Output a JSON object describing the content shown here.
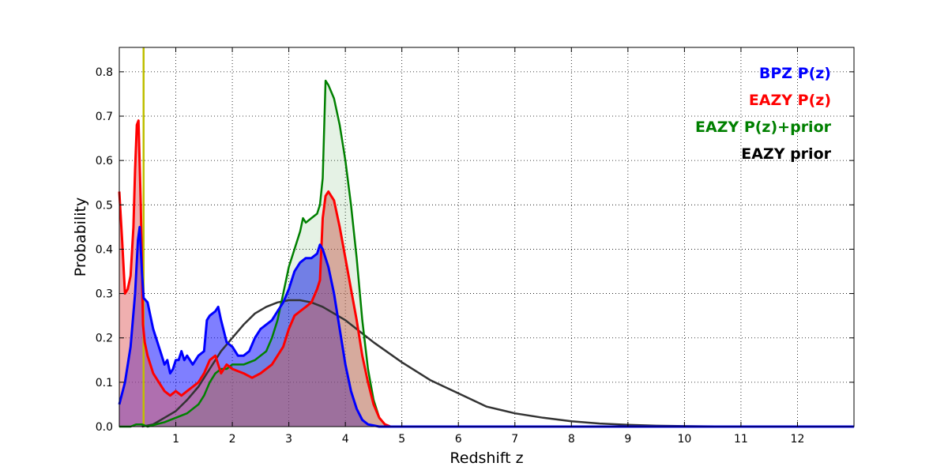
{
  "chart_data": {
    "type": "line",
    "title": "",
    "xlabel": "Redshift z",
    "ylabel": "Probability",
    "xlim": [
      0,
      13
    ],
    "ylim": [
      0,
      0.855
    ],
    "x_ticks": [
      1,
      2,
      3,
      4,
      5,
      6,
      7,
      8,
      9,
      10,
      11,
      12
    ],
    "y_ticks": [
      0.0,
      0.1,
      0.2,
      0.3,
      0.4,
      0.5,
      0.6,
      0.7,
      0.8
    ],
    "grid": true,
    "legend_position": "top-right",
    "vertical_line": {
      "x": 0.43,
      "color": "#bfbf00"
    },
    "series": [
      {
        "name": "BPZ P(z)",
        "color": "#0000ff",
        "fill": "#0000ff",
        "fill_opacity": 0.5,
        "points": [
          [
            0,
            0.05
          ],
          [
            0.1,
            0.1
          ],
          [
            0.2,
            0.18
          ],
          [
            0.28,
            0.3
          ],
          [
            0.33,
            0.42
          ],
          [
            0.36,
            0.45
          ],
          [
            0.4,
            0.35
          ],
          [
            0.43,
            0.29
          ],
          [
            0.5,
            0.28
          ],
          [
            0.6,
            0.22
          ],
          [
            0.7,
            0.18
          ],
          [
            0.75,
            0.16
          ],
          [
            0.8,
            0.14
          ],
          [
            0.85,
            0.15
          ],
          [
            0.9,
            0.12
          ],
          [
            0.95,
            0.13
          ],
          [
            1.0,
            0.15
          ],
          [
            1.05,
            0.15
          ],
          [
            1.1,
            0.17
          ],
          [
            1.15,
            0.15
          ],
          [
            1.2,
            0.16
          ],
          [
            1.3,
            0.14
          ],
          [
            1.4,
            0.16
          ],
          [
            1.5,
            0.17
          ],
          [
            1.55,
            0.24
          ],
          [
            1.6,
            0.25
          ],
          [
            1.7,
            0.26
          ],
          [
            1.75,
            0.27
          ],
          [
            1.8,
            0.24
          ],
          [
            1.9,
            0.19
          ],
          [
            2.0,
            0.18
          ],
          [
            2.1,
            0.16
          ],
          [
            2.2,
            0.16
          ],
          [
            2.3,
            0.17
          ],
          [
            2.4,
            0.2
          ],
          [
            2.5,
            0.22
          ],
          [
            2.6,
            0.23
          ],
          [
            2.7,
            0.24
          ],
          [
            2.8,
            0.26
          ],
          [
            2.9,
            0.28
          ],
          [
            3.0,
            0.31
          ],
          [
            3.1,
            0.35
          ],
          [
            3.2,
            0.37
          ],
          [
            3.3,
            0.38
          ],
          [
            3.4,
            0.38
          ],
          [
            3.5,
            0.39
          ],
          [
            3.55,
            0.41
          ],
          [
            3.6,
            0.4
          ],
          [
            3.7,
            0.36
          ],
          [
            3.8,
            0.3
          ],
          [
            3.9,
            0.22
          ],
          [
            4.0,
            0.14
          ],
          [
            4.1,
            0.08
          ],
          [
            4.2,
            0.04
          ],
          [
            4.3,
            0.015
          ],
          [
            4.4,
            0.005
          ],
          [
            4.6,
            0.0
          ],
          [
            13,
            0.0
          ]
        ]
      },
      {
        "name": "EAZY P(z)",
        "color": "#ff0000",
        "fill": "#e06060",
        "fill_opacity": 0.5,
        "points": [
          [
            0,
            0.53
          ],
          [
            0.05,
            0.42
          ],
          [
            0.1,
            0.3
          ],
          [
            0.15,
            0.31
          ],
          [
            0.2,
            0.34
          ],
          [
            0.25,
            0.45
          ],
          [
            0.28,
            0.58
          ],
          [
            0.31,
            0.68
          ],
          [
            0.34,
            0.69
          ],
          [
            0.38,
            0.5
          ],
          [
            0.42,
            0.23
          ],
          [
            0.45,
            0.19
          ],
          [
            0.5,
            0.16
          ],
          [
            0.6,
            0.12
          ],
          [
            0.7,
            0.1
          ],
          [
            0.8,
            0.08
          ],
          [
            0.9,
            0.07
          ],
          [
            1.0,
            0.08
          ],
          [
            1.1,
            0.07
          ],
          [
            1.2,
            0.08
          ],
          [
            1.3,
            0.09
          ],
          [
            1.4,
            0.1
          ],
          [
            1.5,
            0.12
          ],
          [
            1.6,
            0.15
          ],
          [
            1.7,
            0.16
          ],
          [
            1.8,
            0.12
          ],
          [
            1.9,
            0.14
          ],
          [
            2.0,
            0.13
          ],
          [
            2.2,
            0.12
          ],
          [
            2.35,
            0.11
          ],
          [
            2.5,
            0.12
          ],
          [
            2.7,
            0.14
          ],
          [
            2.9,
            0.18
          ],
          [
            3.0,
            0.22
          ],
          [
            3.1,
            0.25
          ],
          [
            3.2,
            0.26
          ],
          [
            3.3,
            0.27
          ],
          [
            3.4,
            0.28
          ],
          [
            3.5,
            0.31
          ],
          [
            3.55,
            0.33
          ],
          [
            3.6,
            0.47
          ],
          [
            3.65,
            0.52
          ],
          [
            3.7,
            0.53
          ],
          [
            3.8,
            0.51
          ],
          [
            3.9,
            0.45
          ],
          [
            4.0,
            0.38
          ],
          [
            4.1,
            0.31
          ],
          [
            4.2,
            0.24
          ],
          [
            4.3,
            0.16
          ],
          [
            4.4,
            0.1
          ],
          [
            4.5,
            0.05
          ],
          [
            4.6,
            0.02
          ],
          [
            4.7,
            0.005
          ],
          [
            4.8,
            0.0
          ],
          [
            13,
            0.0
          ]
        ]
      },
      {
        "name": "EAZY P(z)+prior",
        "color": "#008000",
        "fill": "#008000",
        "fill_opacity": 0.1,
        "points": [
          [
            0,
            0.0
          ],
          [
            0.2,
            0.0
          ],
          [
            0.3,
            0.005
          ],
          [
            0.4,
            0.005
          ],
          [
            0.5,
            0.0
          ],
          [
            0.8,
            0.01
          ],
          [
            1.0,
            0.02
          ],
          [
            1.2,
            0.03
          ],
          [
            1.4,
            0.05
          ],
          [
            1.5,
            0.07
          ],
          [
            1.6,
            0.1
          ],
          [
            1.7,
            0.12
          ],
          [
            1.8,
            0.13
          ],
          [
            1.9,
            0.13
          ],
          [
            2.0,
            0.14
          ],
          [
            2.2,
            0.14
          ],
          [
            2.4,
            0.15
          ],
          [
            2.6,
            0.17
          ],
          [
            2.7,
            0.2
          ],
          [
            2.8,
            0.24
          ],
          [
            2.9,
            0.3
          ],
          [
            3.0,
            0.36
          ],
          [
            3.1,
            0.4
          ],
          [
            3.2,
            0.44
          ],
          [
            3.25,
            0.47
          ],
          [
            3.3,
            0.46
          ],
          [
            3.4,
            0.47
          ],
          [
            3.5,
            0.48
          ],
          [
            3.55,
            0.5
          ],
          [
            3.6,
            0.56
          ],
          [
            3.65,
            0.78
          ],
          [
            3.7,
            0.77
          ],
          [
            3.8,
            0.74
          ],
          [
            3.9,
            0.68
          ],
          [
            4.0,
            0.6
          ],
          [
            4.1,
            0.5
          ],
          [
            4.2,
            0.38
          ],
          [
            4.3,
            0.24
          ],
          [
            4.4,
            0.13
          ],
          [
            4.5,
            0.06
          ],
          [
            4.6,
            0.02
          ],
          [
            4.7,
            0.005
          ],
          [
            4.8,
            0.0
          ],
          [
            13,
            0.0
          ]
        ]
      },
      {
        "name": "EAZY prior",
        "color": "#333333",
        "fill": null,
        "fill_opacity": 0,
        "points": [
          [
            0.4,
            0.0
          ],
          [
            0.6,
            0.005
          ],
          [
            0.8,
            0.02
          ],
          [
            1.0,
            0.035
          ],
          [
            1.2,
            0.06
          ],
          [
            1.4,
            0.09
          ],
          [
            1.6,
            0.13
          ],
          [
            1.8,
            0.17
          ],
          [
            2.0,
            0.2
          ],
          [
            2.2,
            0.23
          ],
          [
            2.4,
            0.255
          ],
          [
            2.6,
            0.27
          ],
          [
            2.8,
            0.28
          ],
          [
            3.0,
            0.285
          ],
          [
            3.2,
            0.285
          ],
          [
            3.4,
            0.28
          ],
          [
            3.6,
            0.27
          ],
          [
            3.8,
            0.255
          ],
          [
            4.0,
            0.24
          ],
          [
            4.2,
            0.22
          ],
          [
            4.5,
            0.19
          ],
          [
            5.0,
            0.145
          ],
          [
            5.5,
            0.105
          ],
          [
            6.0,
            0.075
          ],
          [
            6.5,
            0.045
          ],
          [
            7.0,
            0.03
          ],
          [
            7.5,
            0.02
          ],
          [
            8.0,
            0.012
          ],
          [
            8.5,
            0.007
          ],
          [
            9.0,
            0.004
          ],
          [
            9.5,
            0.002
          ],
          [
            10.0,
            0.001
          ],
          [
            11.0,
            0.0
          ],
          [
            12.0,
            0.0
          ]
        ]
      }
    ]
  }
}
